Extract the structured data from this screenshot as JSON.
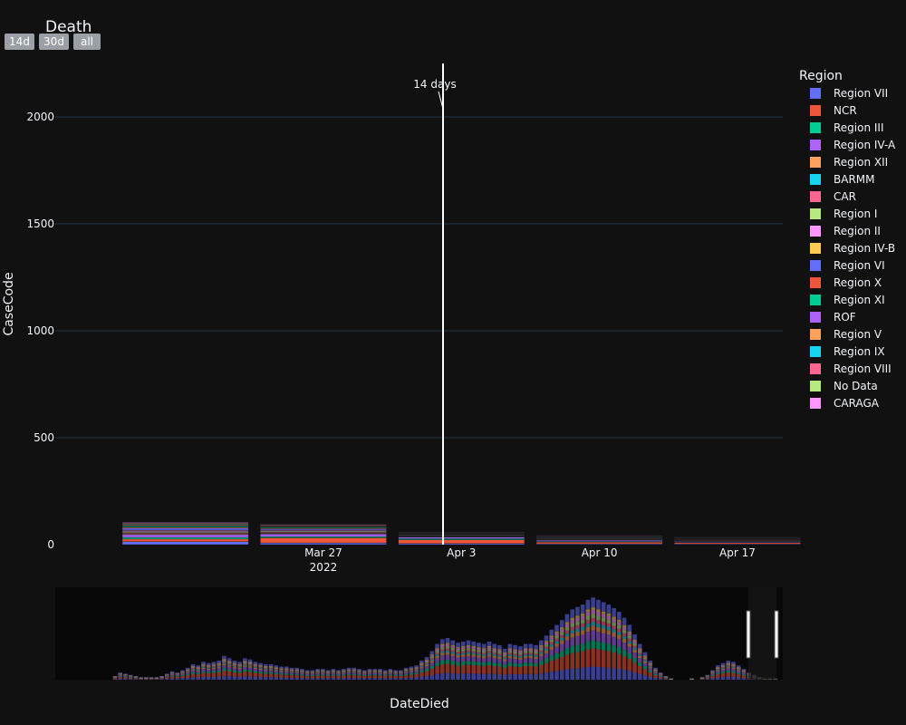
{
  "chart_data": {
    "type": "bar",
    "barmode": "stack",
    "title": "Death",
    "xlabel": "DateDied",
    "ylabel": "CaseCode",
    "ylim": [
      0,
      2250
    ],
    "y_ticks": [
      0,
      500,
      1000,
      1500,
      2000
    ],
    "x_ticks": [
      {
        "label": "Mar 27",
        "sublabel": "2022"
      },
      {
        "label": "Apr 3",
        "sublabel": ""
      },
      {
        "label": "Apr 10",
        "sublabel": ""
      },
      {
        "label": "Apr 17",
        "sublabel": ""
      }
    ],
    "week_starts": [
      "Mar 20",
      "Mar 27",
      "Apr 3",
      "Apr 10",
      "Apr 17"
    ],
    "grid": true,
    "legend_title": "Region",
    "legend_position": "right",
    "annotation": {
      "text": "14 days"
    },
    "range_buttons": [
      "14d",
      "30d",
      "all"
    ],
    "series": [
      {
        "name": "Region VII",
        "color": "#636efa",
        "values": [
          14,
          8,
          5,
          4,
          3
        ]
      },
      {
        "name": "NCR",
        "color": "#ef553b",
        "values": [
          12,
          24,
          18,
          8,
          6
        ]
      },
      {
        "name": "Region III",
        "color": "#00cc96",
        "values": [
          8,
          6,
          5,
          3,
          2
        ]
      },
      {
        "name": "Region IV-A",
        "color": "#ab63fa",
        "values": [
          13,
          12,
          7,
          5,
          4
        ]
      },
      {
        "name": "Region XII",
        "color": "#ffa15a",
        "values": [
          4,
          3,
          2,
          2,
          2
        ]
      },
      {
        "name": "BARMM",
        "color": "#19d3f3",
        "values": [
          2,
          2,
          1,
          1,
          1
        ]
      },
      {
        "name": "CAR",
        "color": "#ff6692",
        "values": [
          4,
          3,
          2,
          2,
          1
        ]
      },
      {
        "name": "Region I",
        "color": "#b6e880",
        "values": [
          4,
          4,
          2,
          2,
          2
        ]
      },
      {
        "name": "Region II",
        "color": "#ff97ff",
        "values": [
          5,
          4,
          2,
          2,
          2
        ]
      },
      {
        "name": "Region IV-B",
        "color": "#fecb52",
        "values": [
          2,
          2,
          1,
          1,
          1
        ]
      },
      {
        "name": "Region VI",
        "color": "#636efa",
        "values": [
          9,
          6,
          3,
          3,
          2
        ]
      },
      {
        "name": "Region X",
        "color": "#ef553b",
        "values": [
          5,
          4,
          2,
          2,
          2
        ]
      },
      {
        "name": "Region XI",
        "color": "#00cc96",
        "values": [
          6,
          5,
          2,
          2,
          2
        ]
      },
      {
        "name": "ROF",
        "color": "#ab63fa",
        "values": [
          1,
          1,
          0,
          0,
          0
        ]
      },
      {
        "name": "Region V",
        "color": "#ffa15a",
        "values": [
          4,
          3,
          2,
          2,
          1
        ]
      },
      {
        "name": "Region IX",
        "color": "#19d3f3",
        "values": [
          3,
          2,
          1,
          1,
          1
        ]
      },
      {
        "name": "Region VIII",
        "color": "#ff6692",
        "values": [
          5,
          4,
          2,
          2,
          2
        ]
      },
      {
        "name": "No Data",
        "color": "#b6e880",
        "values": [
          1,
          1,
          0,
          0,
          0
        ]
      },
      {
        "name": "CARAGA",
        "color": "#ff97ff",
        "values": [
          3,
          2,
          1,
          1,
          1
        ]
      }
    ],
    "overview_totals": [
      0,
      0,
      0,
      0,
      0,
      0,
      0,
      0,
      0,
      0,
      0,
      3,
      6,
      5,
      4,
      3,
      2,
      2,
      2,
      2,
      3,
      5,
      7,
      6,
      8,
      10,
      13,
      12,
      15,
      14,
      15,
      16,
      20,
      18,
      16,
      15,
      18,
      17,
      15,
      14,
      13,
      13,
      12,
      11,
      11,
      10,
      10,
      9,
      8,
      8,
      9,
      9,
      8,
      9,
      8,
      9,
      10,
      10,
      9,
      8,
      9,
      9,
      9,
      8,
      9,
      8,
      8,
      10,
      11,
      12,
      16,
      19,
      24,
      30,
      34,
      35,
      33,
      31,
      32,
      33,
      32,
      31,
      30,
      32,
      30,
      29,
      26,
      30,
      29,
      28,
      30,
      30,
      29,
      33,
      37,
      42,
      46,
      50,
      55,
      59,
      61,
      63,
      67,
      69,
      67,
      65,
      63,
      60,
      57,
      52,
      46,
      38,
      30,
      23,
      16,
      10,
      6,
      3,
      1,
      0,
      0,
      0,
      1,
      0,
      2,
      4,
      8,
      12,
      14,
      16,
      15,
      12,
      9,
      6,
      4,
      2,
      1,
      1,
      1,
      0
    ]
  }
}
